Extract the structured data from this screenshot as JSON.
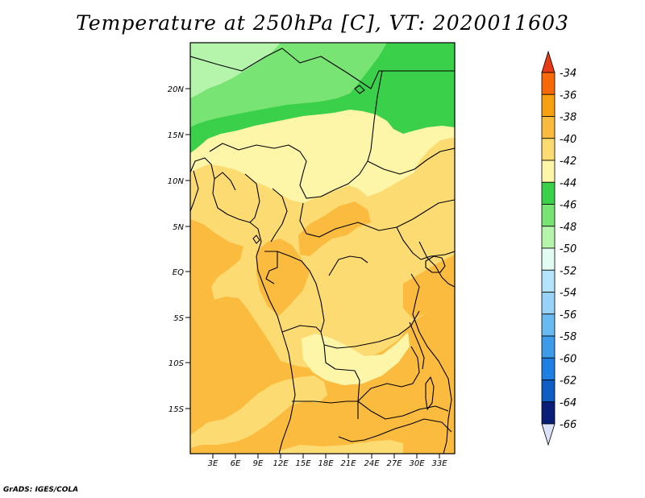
{
  "title": "Temperature at 250hPa [C], VT: 2020011603",
  "credit": "GrADS: IGES/COLA",
  "map": {
    "lat_labels": [
      "20N",
      "15N",
      "10N",
      "5N",
      "EQ",
      "5S",
      "10S",
      "15S"
    ],
    "lon_labels": [
      "3E",
      "6E",
      "9E",
      "12E",
      "15E",
      "18E",
      "21E",
      "24E",
      "27E",
      "30E",
      "33E"
    ],
    "field_colors": {
      "minus38_band": "#fbbb3f",
      "minus40_band": "#fcdc72",
      "minus42_band": "#fdf5a8",
      "minus44_band": "#3bd04a",
      "minus46_band": "#78e474",
      "minus48_band": "#b4f4ab",
      "border": "#000000"
    }
  },
  "colorbar": {
    "labels": [
      "-34",
      "-36",
      "-38",
      "-40",
      "-42",
      "-44",
      "-46",
      "-48",
      "-50",
      "-52",
      "-54",
      "-56",
      "-58",
      "-60",
      "-62",
      "-64",
      "-66"
    ],
    "colors": [
      "#e63b15",
      "#f86a09",
      "#f6a011",
      "#fbbb3f",
      "#fcdc72",
      "#fdf5a8",
      "#3bd04a",
      "#78e474",
      "#b4f4ab",
      "#e2fcf4",
      "#b4e4fc",
      "#97d2f8",
      "#69b9f1",
      "#3d9cea",
      "#1f80e3",
      "#0e5dc2",
      "#091e77",
      "#dde2fb"
    ]
  }
}
